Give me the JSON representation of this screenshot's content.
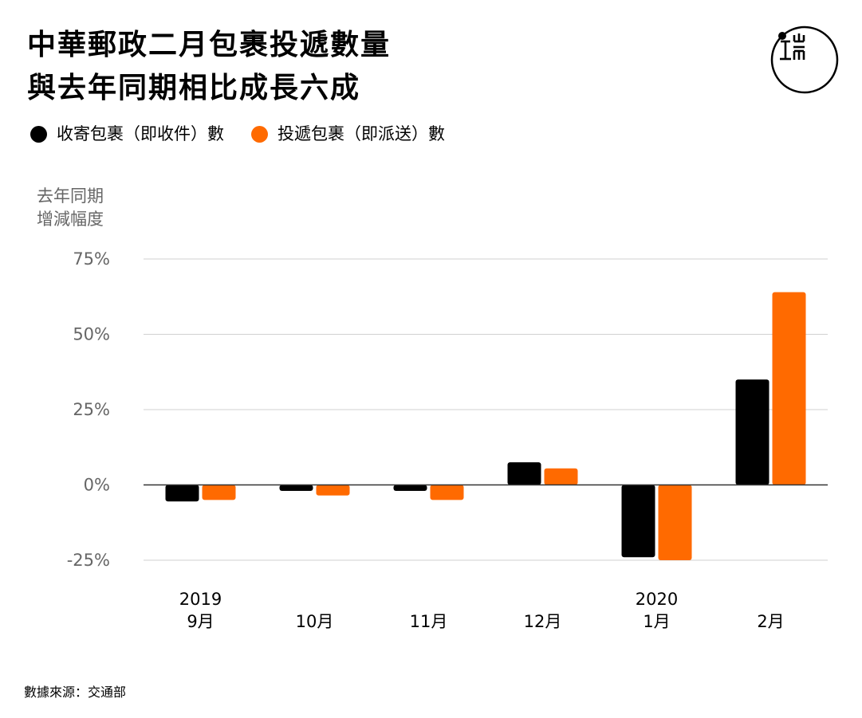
{
  "title_lines": [
    "中華郵政二月包裹投遞數量",
    "與去年同期相比成長六成"
  ],
  "logo": {
    "icon": "initium-logo-icon",
    "glyph": "端"
  },
  "source": "數據來源：交通部",
  "colors": {
    "collect": "#000000",
    "deliver": "#ff6a00",
    "grid": "#d0d0d0",
    "zero": "#333333",
    "axis_text": "#666666"
  },
  "chart_data": {
    "type": "bar",
    "ylabel_lines": [
      "去年同期",
      "增減幅度"
    ],
    "ylim": [
      -25,
      75
    ],
    "yticks": [
      75,
      50,
      25,
      0,
      -25
    ],
    "ytick_labels": [
      "75%",
      "50%",
      "25%",
      "0%",
      "-25%"
    ],
    "grid": true,
    "legend_position": "top-left",
    "categories": [
      {
        "year": "2019",
        "month": "9月"
      },
      {
        "year": "",
        "month": "10月"
      },
      {
        "year": "",
        "month": "11月"
      },
      {
        "year": "",
        "month": "12月"
      },
      {
        "year": "2020",
        "month": "1月"
      },
      {
        "year": "",
        "month": "2月"
      }
    ],
    "series": [
      {
        "name": "收寄包裹（即收件）數",
        "color": "#000000",
        "values": [
          -5.5,
          -2,
          -2,
          7.5,
          -24,
          35
        ]
      },
      {
        "name": "投遞包裹（即派送）數",
        "color": "#ff6a00",
        "values": [
          -5,
          -3.5,
          -5,
          5.5,
          -25,
          64
        ]
      }
    ]
  }
}
